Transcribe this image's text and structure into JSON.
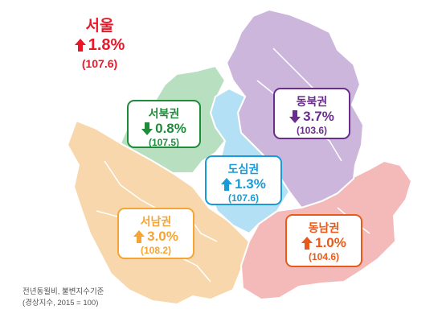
{
  "note": {
    "line1": "전년동월비, 불변지수기준",
    "line2": "(경상지수, 2015 = 100)"
  },
  "regions": {
    "seoul": {
      "name": "서울",
      "change": "1.8%",
      "direction": "up",
      "index": "(107.6)",
      "color": "#e8182a"
    },
    "northwest": {
      "name": "서북권",
      "change": "0.8%",
      "direction": "down",
      "index": "(107.5)",
      "color": "#1f8c3b",
      "fill": "#b7dfc0"
    },
    "northeast": {
      "name": "동북권",
      "change": "3.7%",
      "direction": "down",
      "index": "(103.6)",
      "color": "#6a2d8c",
      "fill": "#cdb6dc"
    },
    "downtown": {
      "name": "도심권",
      "change": "1.3%",
      "direction": "up",
      "index": "(107.6)",
      "color": "#1a9bd7",
      "fill": "#b3e0f4"
    },
    "southwest": {
      "name": "서남권",
      "change": "3.0%",
      "direction": "up",
      "index": "(108.2)",
      "color": "#f4a533",
      "fill": "#f8d7ac"
    },
    "southeast": {
      "name": "동남권",
      "change": "1.0%",
      "direction": "up",
      "index": "(104.6)",
      "color": "#e85a1c",
      "fill": "#f4b9b9"
    }
  }
}
